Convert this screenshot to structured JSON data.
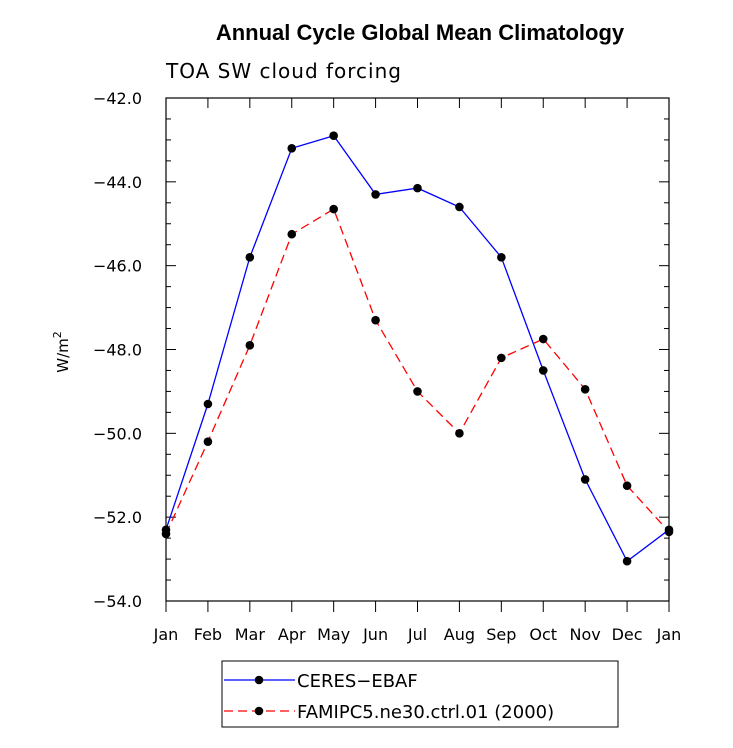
{
  "chart_data": {
    "type": "line",
    "title": "Annual Cycle Global Mean Climatology",
    "subtitle": "TOA SW cloud forcing",
    "ylabel": "W/m",
    "ylabel_superscript": "2",
    "ylim": [
      -54.0,
      -42.0
    ],
    "yticks": [
      -42.0,
      -44.0,
      -46.0,
      -48.0,
      -50.0,
      -52.0,
      -54.0
    ],
    "ytick_labels": [
      "−42.0",
      "−44.0",
      "−46.0",
      "−48.0",
      "−50.0",
      "−52.0",
      "−54.0"
    ],
    "categories": [
      "Jan",
      "Feb",
      "Mar",
      "Apr",
      "May",
      "Jun",
      "Jul",
      "Aug",
      "Sep",
      "Oct",
      "Nov",
      "Dec",
      "Jan"
    ],
    "series": [
      {
        "name": "CERES−EBAF",
        "color": "#0000ff",
        "dash": "solid",
        "values": [
          -52.3,
          -49.3,
          -45.8,
          -43.2,
          -42.9,
          -44.3,
          -44.15,
          -44.6,
          -45.8,
          -48.5,
          -51.1,
          -53.05,
          -52.3
        ]
      },
      {
        "name": "FAMIPC5.ne30.ctrl.01 (2000)",
        "color": "#ff0000",
        "dash": "dashed",
        "values": [
          -52.4,
          -50.2,
          -47.9,
          -45.25,
          -44.65,
          -47.3,
          -49.0,
          -50.0,
          -48.2,
          -47.75,
          -48.95,
          -51.25,
          -52.35
        ]
      }
    ]
  }
}
